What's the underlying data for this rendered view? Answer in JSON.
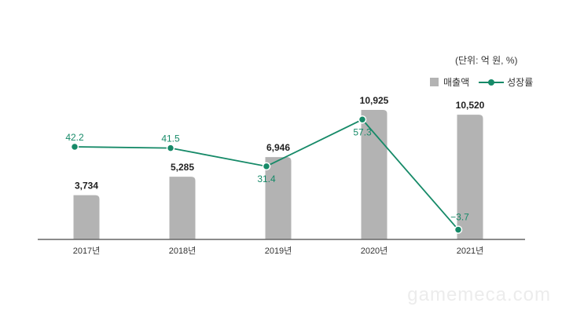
{
  "chart_data": {
    "type": "bar+line",
    "unit_label": "(단위: 억 원, %)",
    "categories": [
      "2017년",
      "2018년",
      "2019년",
      "2020년",
      "2021년"
    ],
    "series": [
      {
        "name": "매출액",
        "type": "bar",
        "color": "#b3b3b3",
        "values": [
          3734,
          5285,
          6946,
          10925,
          10520
        ],
        "labels": [
          "3,734",
          "5,285",
          "6,946",
          "10,925",
          "10,520"
        ]
      },
      {
        "name": "성장률",
        "type": "line",
        "color": "#168a68",
        "values": [
          42.2,
          41.5,
          31.4,
          57.3,
          -3.7
        ],
        "labels": [
          "42.2",
          "41.5",
          "31.4",
          "57.3",
          "−3.7"
        ]
      }
    ],
    "legend_position": "top-right",
    "grid": false
  },
  "watermark": "gamemeca.com"
}
